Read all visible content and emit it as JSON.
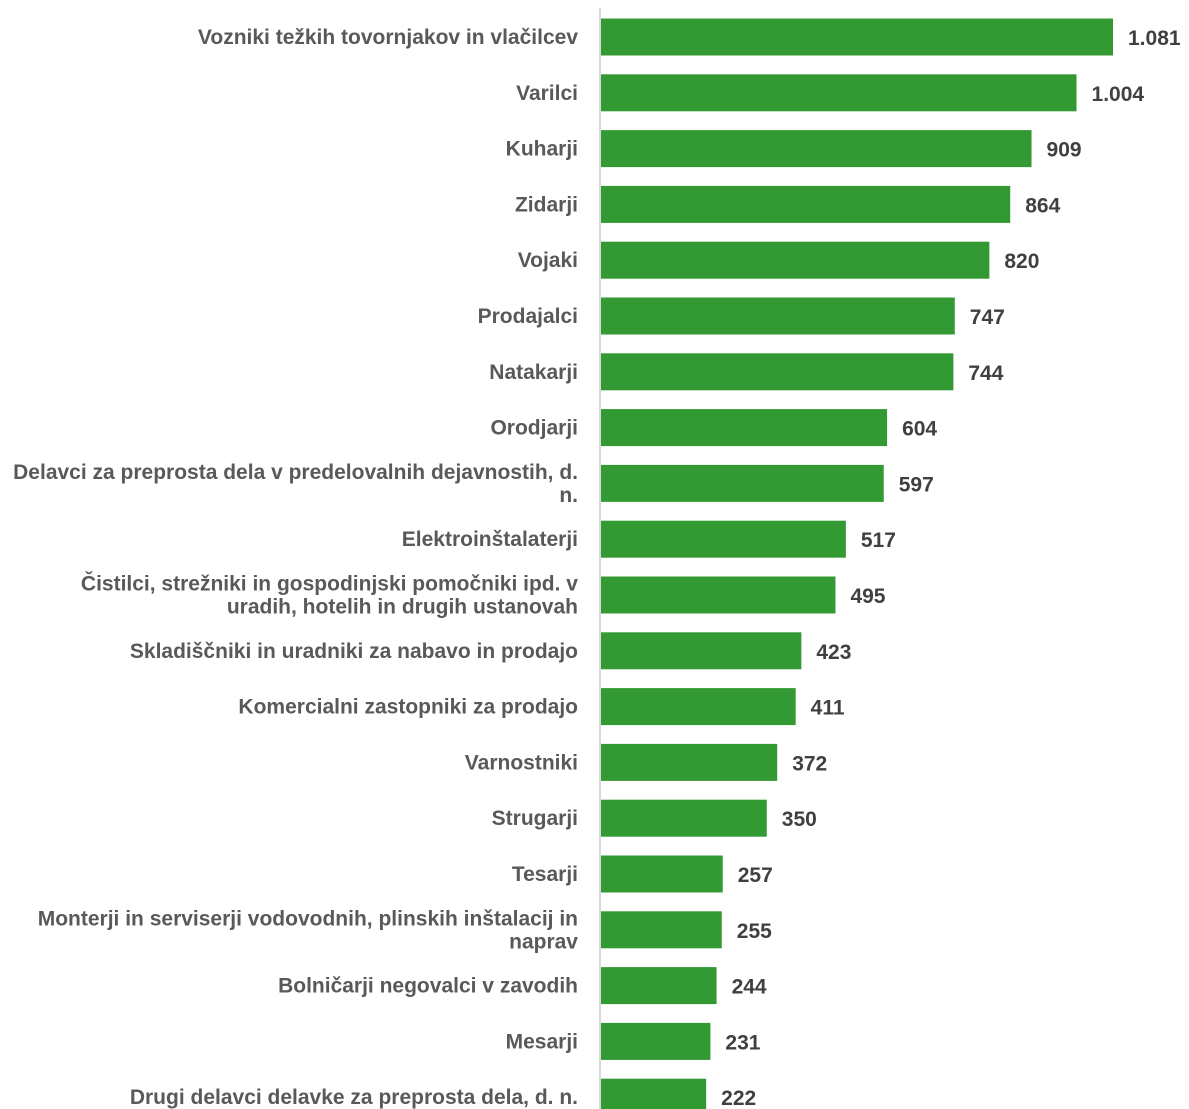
{
  "chart_data": {
    "type": "bar",
    "orientation": "horizontal",
    "title": "",
    "xlabel": "",
    "ylabel": "",
    "grid": false,
    "legend": "none",
    "bar_color": "#339933",
    "axis_color": "#d9d9d9",
    "xlim": [
      0,
      1081
    ],
    "categories": [
      "Vozniki težkih tovornjakov in vlačilcev",
      "Varilci",
      "Kuharji",
      "Zidarji",
      "Vojaki",
      "Prodajalci",
      "Natakarji",
      "Orodjarji",
      "Delavci za preprosta dela v predelovalnih dejavnostih, d. n.",
      "Elektroinštalaterji",
      "Čistilci, strežniki in gospodinjski pomočniki ipd. v uradih, hotelih in drugih ustanovah",
      "Skladiščniki in uradniki za nabavo in prodajo",
      "Komercialni zastopniki za prodajo",
      "Varnostniki",
      "Strugarji",
      "Tesarji",
      "Monterji in serviserji vodovodnih, plinskih inštalacij in naprav",
      "Bolničarji negovalci v zavodih",
      "Mesarji",
      "Drugi delavci delavke za preprosta dela, d. n."
    ],
    "values": [
      1081,
      1004,
      909,
      864,
      820,
      747,
      744,
      604,
      597,
      517,
      495,
      423,
      411,
      372,
      350,
      257,
      255,
      244,
      231,
      222
    ],
    "value_labels": [
      "1.081",
      "1.004",
      "909",
      "864",
      "820",
      "747",
      "744",
      "604",
      "597",
      "517",
      "495",
      "423",
      "411",
      "372",
      "350",
      "257",
      "255",
      "244",
      "231",
      "222"
    ]
  }
}
